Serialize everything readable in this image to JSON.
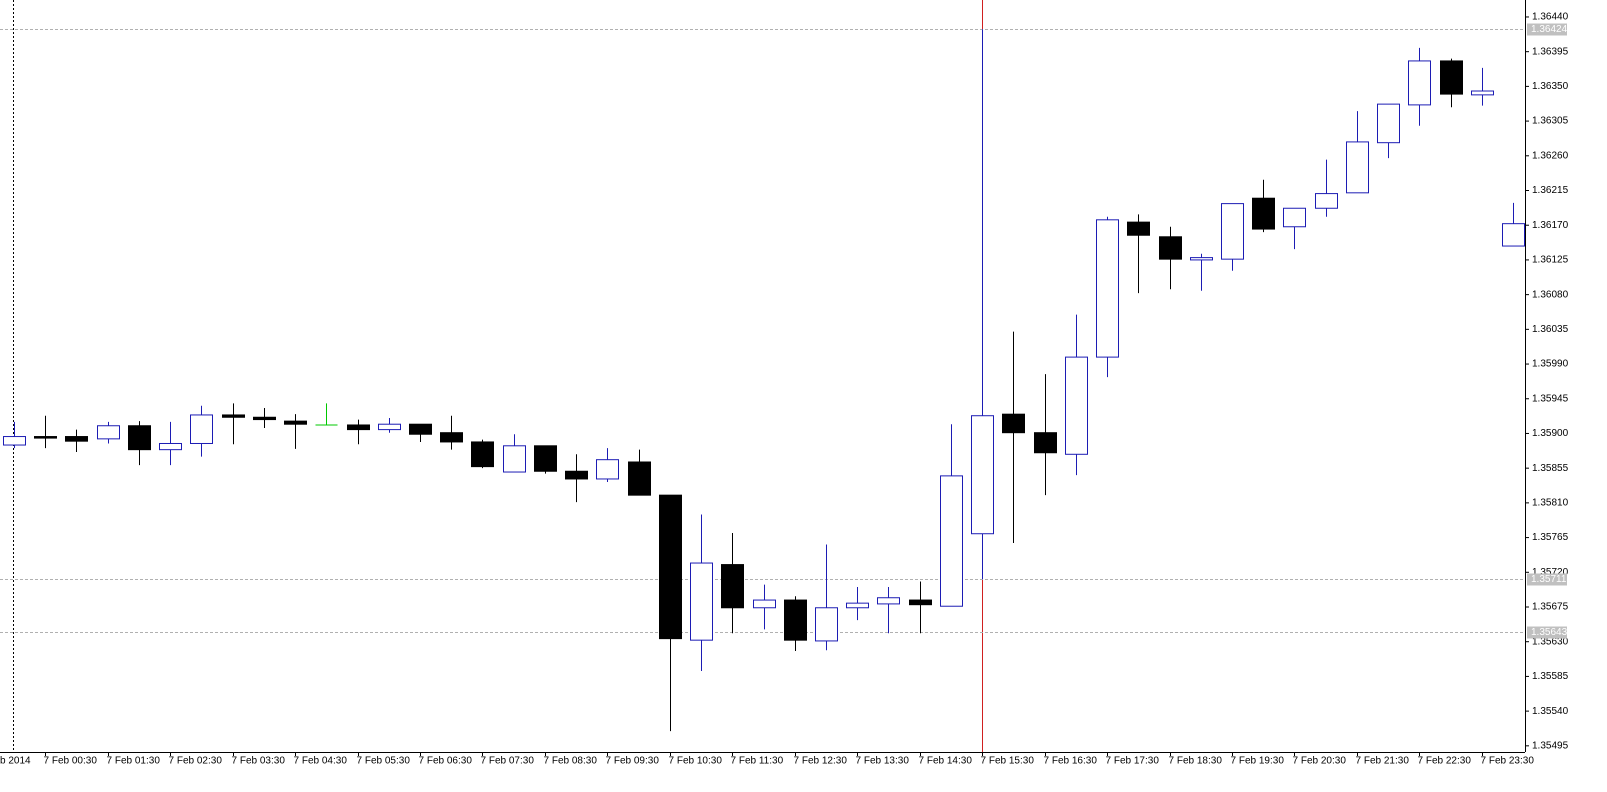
{
  "chart_data": {
    "type": "candlestick",
    "categories": [
      "b 2014",
      "7 Feb 00:30",
      null,
      "7 Feb 01:30",
      null,
      "7 Feb 02:30",
      null,
      "7 Feb 03:30",
      null,
      "7 Feb 04:30",
      null,
      "7 Feb 05:30",
      null,
      "7 Feb 06:30",
      null,
      "7 Feb 07:30",
      null,
      "7 Feb 08:30",
      null,
      "7 Feb 09:30",
      null,
      "7 Feb 10:30",
      null,
      "7 Feb 11:30",
      null,
      "7 Feb 12:30",
      null,
      "7 Feb 13:30",
      null,
      "7 Feb 14:30",
      null,
      "7 Feb 15:30",
      null,
      "7 Feb 16:30",
      null,
      "7 Feb 17:30",
      null,
      "7 Feb 18:30",
      null,
      "7 Feb 19:30",
      null,
      "7 Feb 20:30",
      null,
      "7 Feb 21:30",
      null,
      "7 Feb 22:30",
      null,
      "7 Feb 23:30",
      null
    ],
    "open": [
      1.35885,
      1.35896,
      1.35896,
      1.35893,
      1.3591,
      1.35879,
      1.35887,
      1.35924,
      1.35921,
      1.35916,
      1.35911,
      1.35911,
      1.35905,
      1.35912,
      1.35901,
      1.35889,
      1.3585,
      1.35884,
      1.35851,
      1.35841,
      1.35863,
      1.3582,
      1.35632,
      1.3573,
      1.35674,
      1.35684,
      1.35631,
      1.35674,
      1.35679,
      1.35684,
      1.35676,
      1.3577,
      1.35925,
      1.35901,
      1.35873,
      1.35999,
      1.36174,
      1.36155,
      1.36125,
      1.36126,
      1.36205,
      1.36168,
      1.36192,
      1.36212,
      1.36277,
      1.36326,
      1.36383,
      1.36339,
      1.36143
    ],
    "high": [
      1.35915,
      1.35923,
      1.35905,
      1.35915,
      1.35916,
      1.35915,
      1.35936,
      1.35939,
      1.35933,
      1.35925,
      1.35939,
      1.35918,
      1.3592,
      1.35912,
      1.35923,
      1.35892,
      1.35899,
      1.35884,
      1.35873,
      1.35881,
      1.35879,
      1.3582,
      1.35795,
      1.35771,
      1.35704,
      1.35689,
      1.35756,
      1.35701,
      1.35701,
      1.35708,
      1.35912,
      1.36424,
      1.36032,
      1.35977,
      1.36054,
      1.36181,
      1.36184,
      1.36168,
      1.36133,
      1.36198,
      1.36229,
      1.36192,
      1.36255,
      1.36318,
      1.36327,
      1.364,
      1.36386,
      1.36374,
      1.36199
    ],
    "low": [
      1.35881,
      1.35881,
      1.35876,
      1.35887,
      1.35859,
      1.35859,
      1.3587,
      1.35886,
      1.35907,
      1.3588,
      1.35911,
      1.35886,
      1.35901,
      1.35889,
      1.35879,
      1.35855,
      1.3585,
      1.35848,
      1.35811,
      1.35837,
      1.3582,
      1.35514,
      1.35592,
      1.35641,
      1.35646,
      1.35618,
      1.35619,
      1.35658,
      1.35641,
      1.35641,
      1.35676,
      1.35711,
      1.35758,
      1.3582,
      1.35846,
      1.35973,
      1.36082,
      1.36087,
      1.36085,
      1.36111,
      1.36161,
      1.36139,
      1.36181,
      1.36212,
      1.36257,
      1.36299,
      1.36323,
      1.36325,
      1.36143
    ],
    "close": [
      1.35896,
      1.35894,
      1.3589,
      1.3591,
      1.35879,
      1.35887,
      1.35924,
      1.35921,
      1.35918,
      1.35912,
      1.35911,
      1.35905,
      1.35912,
      1.35899,
      1.35889,
      1.35857,
      1.35884,
      1.35851,
      1.35841,
      1.35866,
      1.3582,
      1.35634,
      1.35732,
      1.35674,
      1.35684,
      1.35632,
      1.35674,
      1.3568,
      1.35687,
      1.35678,
      1.35845,
      1.35923,
      1.35901,
      1.35875,
      1.35999,
      1.36177,
      1.36157,
      1.36126,
      1.36128,
      1.36198,
      1.36165,
      1.36192,
      1.36211,
      1.36278,
      1.36327,
      1.36383,
      1.3634,
      1.36344,
      1.36172
    ],
    "up_color": "#1c1cb4",
    "down_color": "#000000",
    "doji_color": "#00c800",
    "ylim": [
      1.35487,
      1.36462
    ],
    "yticks": [
      {
        "value": 1.3644,
        "label": "1.36440"
      },
      1.36395,
      {
        "value": 1.3635,
        "label": "1.36350"
      },
      1.36305,
      {
        "value": 1.3626,
        "label": "1.36260"
      },
      1.36215,
      {
        "value": 1.3617,
        "label": "1.36170"
      },
      1.36125,
      {
        "value": 1.3608,
        "label": "1.36080"
      },
      1.36035,
      {
        "value": 1.3599,
        "label": "1.35990"
      },
      1.35945,
      {
        "value": 1.359,
        "label": "1.35900"
      },
      1.35855,
      {
        "value": 1.3581,
        "label": "1.35810"
      },
      1.35765,
      {
        "value": 1.3572,
        "label": "1.35720"
      },
      1.35675,
      {
        "value": 1.3563,
        "label": "1.35630"
      },
      1.35585,
      {
        "value": 1.3554,
        "label": "1.35540"
      },
      1.35495
    ],
    "hlines": [
      1.36424,
      1.35711,
      1.35643
    ]
  }
}
